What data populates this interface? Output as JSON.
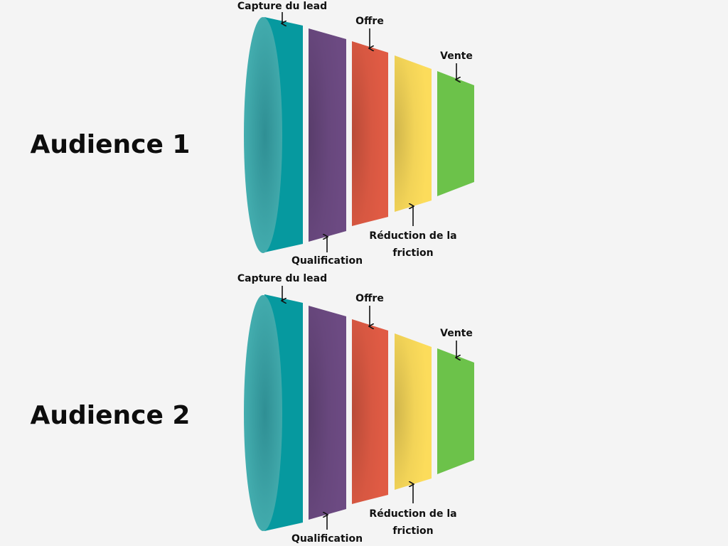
{
  "audiences": [
    {
      "title": "Audience 1",
      "labels": {
        "capture": "Capture du lead",
        "qualification": "Qualification",
        "offre": "Offre",
        "reduction_line1": "Réduction de la",
        "reduction_line2": "friction",
        "vente": "Vente"
      }
    },
    {
      "title": "Audience 2",
      "labels": {
        "capture": "Capture du lead",
        "qualification": "Qualification",
        "offre": "Offre",
        "reduction_line1": "Réduction de la",
        "reduction_line2": "friction",
        "vente": "Vente"
      }
    }
  ],
  "colors": {
    "teal": "#06999f",
    "teal_cap": "#3aa6a8",
    "purple": "#6c4a82",
    "red": "#e05b44",
    "yellow": "#fcdc5b",
    "green": "#6cc24a",
    "arrow": "#111111",
    "text": "#111111",
    "background": "#f4f4f4"
  }
}
